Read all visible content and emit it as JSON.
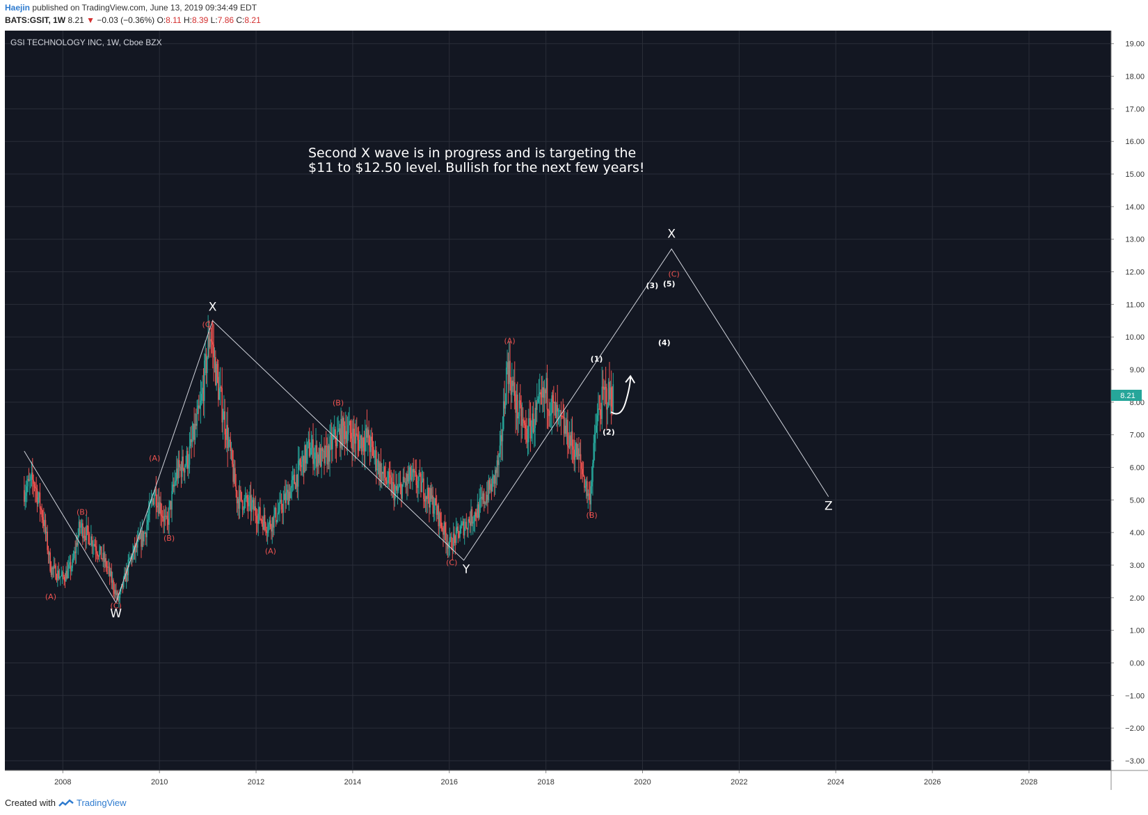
{
  "header": {
    "author": "Haejin",
    "published": "published on TradingView.com, June 13, 2019 09:34:49 EDT",
    "symbol": "BATS:GSIT, 1W",
    "last": "8.21",
    "change": "−0.03 (−0.36%)",
    "open_label": "O:",
    "open": "8.11",
    "high_label": "H:",
    "high": "8.39",
    "low_label": "L:",
    "low": "7.86",
    "close_label": "C:",
    "close": "8.21"
  },
  "chart_title": "GSI TECHNOLOGY INC, 1W, Cboe BZX",
  "annotation_lines": [
    "Second X wave is in progress and is targeting the",
    "$11 to $12.50 level. Bullish for the next few years!"
  ],
  "price_badge": "8.21",
  "footer": {
    "created": "Created with",
    "brand": "TradingView"
  },
  "colors": {
    "background": "#131722",
    "up": "#26a69a",
    "down": "#ef5350",
    "label_red": "#ef5350",
    "badge": "#26a69a",
    "wave": "#ffffff"
  },
  "chart_data": {
    "type": "candlestick",
    "ylim": [
      -3.3,
      19.4
    ],
    "xlim": [
      2006.8,
      2029.7
    ],
    "y_ticks": [
      "19.00",
      "18.00",
      "17.00",
      "16.00",
      "15.00",
      "14.00",
      "13.00",
      "12.00",
      "11.00",
      "10.00",
      "9.00",
      "8.00",
      "7.00",
      "6.00",
      "5.00",
      "4.00",
      "3.00",
      "2.00",
      "1.00",
      "0.00",
      "−1.00",
      "−2.00",
      "−3.00"
    ],
    "x_ticks": [
      "2008",
      "2010",
      "2012",
      "2014",
      "2016",
      "2018",
      "2020",
      "2022",
      "2024",
      "2026",
      "2028"
    ],
    "price_path": [
      {
        "x": 2007.2,
        "y": 5.3
      },
      {
        "x": 2007.4,
        "y": 5.6
      },
      {
        "x": 2007.6,
        "y": 4.4
      },
      {
        "x": 2007.75,
        "y": 2.9
      },
      {
        "x": 2008.0,
        "y": 2.6
      },
      {
        "x": 2008.2,
        "y": 3.0
      },
      {
        "x": 2008.35,
        "y": 4.2
      },
      {
        "x": 2008.6,
        "y": 3.8
      },
      {
        "x": 2008.9,
        "y": 3.0
      },
      {
        "x": 2009.15,
        "y": 1.9
      },
      {
        "x": 2009.4,
        "y": 3.2
      },
      {
        "x": 2009.7,
        "y": 4.0
      },
      {
        "x": 2009.9,
        "y": 5.3
      },
      {
        "x": 2010.15,
        "y": 4.2
      },
      {
        "x": 2010.35,
        "y": 5.8
      },
      {
        "x": 2010.6,
        "y": 6.3
      },
      {
        "x": 2010.85,
        "y": 7.8
      },
      {
        "x": 2011.05,
        "y": 10.2
      },
      {
        "x": 2011.2,
        "y": 8.6
      },
      {
        "x": 2011.4,
        "y": 7.0
      },
      {
        "x": 2011.6,
        "y": 5.1
      },
      {
        "x": 2011.9,
        "y": 4.8
      },
      {
        "x": 2012.25,
        "y": 4.2
      },
      {
        "x": 2012.5,
        "y": 4.7
      },
      {
        "x": 2012.8,
        "y": 5.6
      },
      {
        "x": 2013.1,
        "y": 6.6
      },
      {
        "x": 2013.4,
        "y": 6.2
      },
      {
        "x": 2013.6,
        "y": 6.8
      },
      {
        "x": 2013.85,
        "y": 7.2
      },
      {
        "x": 2014.1,
        "y": 6.8
      },
      {
        "x": 2014.3,
        "y": 6.9
      },
      {
        "x": 2014.6,
        "y": 5.8
      },
      {
        "x": 2014.9,
        "y": 5.2
      },
      {
        "x": 2015.2,
        "y": 5.7
      },
      {
        "x": 2015.45,
        "y": 5.4
      },
      {
        "x": 2015.7,
        "y": 4.8
      },
      {
        "x": 2016.0,
        "y": 3.6
      },
      {
        "x": 2016.3,
        "y": 4.2
      },
      {
        "x": 2016.6,
        "y": 4.7
      },
      {
        "x": 2016.9,
        "y": 5.5
      },
      {
        "x": 2017.05,
        "y": 6.3
      },
      {
        "x": 2017.2,
        "y": 9.2
      },
      {
        "x": 2017.4,
        "y": 7.8
      },
      {
        "x": 2017.6,
        "y": 7.0
      },
      {
        "x": 2017.8,
        "y": 7.6
      },
      {
        "x": 2018.0,
        "y": 8.3
      },
      {
        "x": 2018.2,
        "y": 7.6
      },
      {
        "x": 2018.45,
        "y": 7.0
      },
      {
        "x": 2018.7,
        "y": 6.2
      },
      {
        "x": 2018.9,
        "y": 5.0
      },
      {
        "x": 2019.05,
        "y": 7.4
      },
      {
        "x": 2019.2,
        "y": 8.2
      },
      {
        "x": 2019.4,
        "y": 8.21
      }
    ],
    "wave_lines": [
      [
        [
          2007.2,
          6.5
        ],
        [
          2009.1,
          1.85
        ],
        [
          2011.1,
          10.5
        ],
        [
          2016.3,
          3.15
        ],
        [
          2020.6,
          12.7
        ],
        [
          2023.85,
          5.1
        ]
      ]
    ],
    "wave_labels": [
      {
        "text": "W",
        "x": 2009.1,
        "y": 1.4
      },
      {
        "text": "X",
        "x": 2011.1,
        "y": 10.8
      },
      {
        "text": "Y",
        "x": 2016.35,
        "y": 2.75
      },
      {
        "text": "X",
        "x": 2020.6,
        "y": 13.05
      },
      {
        "text": "Z",
        "x": 2023.85,
        "y": 4.7
      }
    ],
    "sub_labels_red": [
      {
        "text": "(A)",
        "x": 2007.75,
        "y": 1.95
      },
      {
        "text": "(B)",
        "x": 2008.4,
        "y": 4.55
      },
      {
        "text": "(C)",
        "x": 2009.1,
        "y": 1.68
      },
      {
        "text": "(A)",
        "x": 2009.9,
        "y": 6.2
      },
      {
        "text": "(B)",
        "x": 2010.2,
        "y": 3.75
      },
      {
        "text": "(C)",
        "x": 2011.0,
        "y": 10.3
      },
      {
        "text": "(A)",
        "x": 2012.3,
        "y": 3.35
      },
      {
        "text": "(B)",
        "x": 2013.7,
        "y": 7.9
      },
      {
        "text": "(C)",
        "x": 2016.05,
        "y": 3.0
      },
      {
        "text": "(A)",
        "x": 2017.25,
        "y": 9.8
      },
      {
        "text": "(B)",
        "x": 2018.95,
        "y": 4.45
      },
      {
        "text": "(C)",
        "x": 2020.65,
        "y": 11.85
      }
    ],
    "sub_labels_white": [
      {
        "text": "(1)",
        "x": 2019.05,
        "y": 9.25
      },
      {
        "text": "(2)",
        "x": 2019.3,
        "y": 7.0
      },
      {
        "text": "(3)",
        "x": 2020.2,
        "y": 11.5
      },
      {
        "text": "(4)",
        "x": 2020.45,
        "y": 9.75
      },
      {
        "text": "(5)",
        "x": 2020.55,
        "y": 11.55
      }
    ],
    "arrow_path": [
      [
        2019.35,
        7.7
      ],
      [
        2019.55,
        7.5
      ],
      [
        2019.65,
        8.0
      ],
      [
        2019.75,
        8.8
      ]
    ]
  }
}
